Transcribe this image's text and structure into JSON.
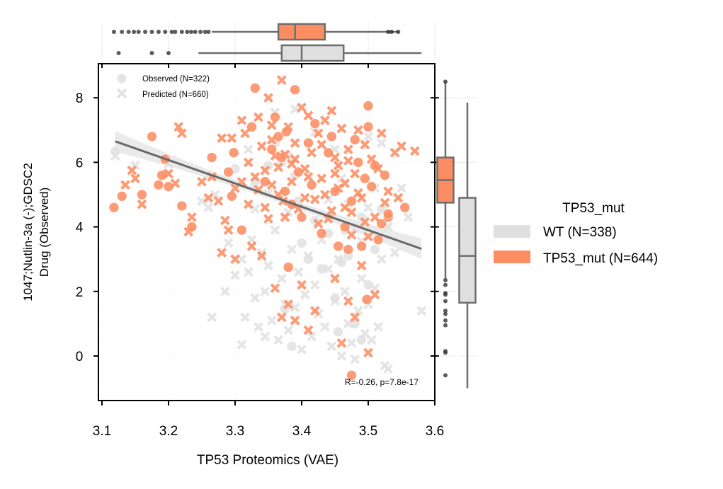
{
  "chart_data": {
    "type": "scatter",
    "xlabel": "TP53 Proteomics (VAE)",
    "ylabel_lines": [
      "1047;Nutlin-3a (-);GDSC2",
      "Drug (Observed)"
    ],
    "xlim": [
      3.1,
      3.6
    ],
    "ylim": [
      -1.5,
      9
    ],
    "x_ticks": [
      "3.1",
      "3.2",
      "3.3",
      "3.4",
      "3.5",
      "3.6"
    ],
    "y_ticks": [
      "0",
      "2",
      "4",
      "6",
      "8"
    ],
    "annotation": "R=-0.26, p=7.8e-17",
    "marker_legend": {
      "observed": "Observed (N=322)",
      "predicted": "Predicted (N=660)"
    },
    "legend": {
      "title": "TP53_mut",
      "wt_label": "WT (N=338)",
      "mut_label": "TP53_mut (N=644)"
    },
    "colors": {
      "wt": "#e0e0e0",
      "mut": "#fc8d62",
      "line": "#696969",
      "box_edge": "#6e6e6e"
    },
    "regression": {
      "x": [
        3.12,
        3.58
      ],
      "y": [
        6.65,
        3.32
      ],
      "band_halfwidth_ends": 0.32,
      "band_halfwidth_mid": 0.1
    },
    "x_box": {
      "mut": {
        "whisker": [
          3.265,
          3.545
        ],
        "q1": 3.365,
        "median": 3.39,
        "q3": 3.435,
        "outliers": [
          3.118,
          3.13,
          3.14,
          3.148,
          3.155,
          3.165,
          3.175,
          3.185,
          3.195,
          3.205,
          3.21,
          3.22,
          3.228,
          3.234,
          3.24,
          3.248,
          3.255,
          3.26,
          3.53,
          3.535,
          3.545
        ]
      },
      "wt": {
        "whisker": [
          3.245,
          3.58
        ],
        "q1": 3.37,
        "median": 3.4,
        "q3": 3.463,
        "outliers": [
          3.125,
          3.175,
          3.2
        ]
      }
    },
    "y_box": {
      "mut": {
        "whisker": [
          2.4,
          8.5
        ],
        "q1": 4.75,
        "median": 5.45,
        "q3": 6.15,
        "outliers": [
          8.5,
          2.35,
          2.2,
          1.95,
          1.9,
          1.7,
          1.4,
          1.3,
          1.1,
          0.95,
          0.15,
          0.1,
          -0.6
        ]
      },
      "wt": {
        "whisker": [
          -1.0,
          7.85
        ],
        "q1": 1.65,
        "median": 3.1,
        "q3": 4.9,
        "outliers": []
      }
    },
    "series": [
      {
        "group": "TP53_mut",
        "marker": "observed",
        "points": [
          [
            3.118,
            4.6
          ],
          [
            3.13,
            4.95
          ],
          [
            3.16,
            5.0
          ],
          [
            3.175,
            6.8
          ],
          [
            3.185,
            5.3
          ],
          [
            3.19,
            5.6
          ],
          [
            3.195,
            6.1
          ],
          [
            3.2,
            5.25
          ],
          [
            3.22,
            4.65
          ],
          [
            3.235,
            4.0
          ],
          [
            3.265,
            6.15
          ],
          [
            3.29,
            5.7
          ],
          [
            3.295,
            4.95
          ],
          [
            3.298,
            6.3
          ],
          [
            3.31,
            3.9
          ],
          [
            3.33,
            8.3
          ],
          [
            3.355,
            6.4
          ],
          [
            3.36,
            7.4
          ],
          [
            3.365,
            6.8
          ],
          [
            3.37,
            6.15
          ],
          [
            3.375,
            5.1
          ],
          [
            3.385,
            4.7
          ],
          [
            3.39,
            8.25
          ],
          [
            3.395,
            5.7
          ],
          [
            3.4,
            4.3
          ],
          [
            3.41,
            6.6
          ],
          [
            3.415,
            5.3
          ],
          [
            3.42,
            7.2
          ],
          [
            3.43,
            3.8
          ],
          [
            3.44,
            6.3
          ],
          [
            3.45,
            5.1
          ],
          [
            3.455,
            3.4
          ],
          [
            3.465,
            4.0
          ],
          [
            3.47,
            3.3
          ],
          [
            3.475,
            -0.6
          ],
          [
            3.48,
            6.7
          ],
          [
            3.49,
            3.4
          ],
          [
            3.495,
            5.5
          ],
          [
            3.5,
            7.1
          ],
          [
            3.505,
            5.25
          ],
          [
            3.51,
            5.9
          ],
          [
            3.515,
            3.6
          ],
          [
            3.52,
            4.1
          ],
          [
            3.525,
            5.6
          ],
          [
            3.53,
            4.3
          ],
          [
            3.555,
            4.6
          ],
          [
            3.5,
            7.75
          ],
          [
            3.498,
            1.75
          ],
          [
            3.377,
            6.95
          ],
          [
            3.345,
            5.4
          ],
          [
            3.325,
            7.1
          ],
          [
            3.38,
            2.75
          ],
          [
            3.475,
            4.8
          ],
          [
            3.485,
            6.0
          ],
          [
            3.53,
            4.4
          ],
          [
            3.445,
            6.8
          ]
        ]
      },
      {
        "group": "TP53_mut",
        "marker": "predicted",
        "points": [
          [
            3.135,
            5.3
          ],
          [
            3.145,
            5.75
          ],
          [
            3.15,
            5.5
          ],
          [
            3.16,
            4.7
          ],
          [
            3.2,
            5.65
          ],
          [
            3.21,
            5.35
          ],
          [
            3.215,
            7.1
          ],
          [
            3.22,
            6.9
          ],
          [
            3.23,
            3.85
          ],
          [
            3.235,
            4.3
          ],
          [
            3.25,
            5.4
          ],
          [
            3.26,
            4.9
          ],
          [
            3.265,
            5.55
          ],
          [
            3.275,
            4.8
          ],
          [
            3.28,
            6.75
          ],
          [
            3.285,
            4.2
          ],
          [
            3.29,
            3.9
          ],
          [
            3.295,
            6.75
          ],
          [
            3.3,
            5.2
          ],
          [
            3.31,
            7.3
          ],
          [
            3.315,
            6.9
          ],
          [
            3.32,
            6.0
          ],
          [
            3.325,
            3.4
          ],
          [
            3.33,
            5.55
          ],
          [
            3.335,
            7.4
          ],
          [
            3.34,
            6.5
          ],
          [
            3.345,
            5.75
          ],
          [
            3.35,
            8.0
          ],
          [
            3.355,
            7.15
          ],
          [
            3.36,
            6.2
          ],
          [
            3.365,
            5.85
          ],
          [
            3.37,
            8.55
          ],
          [
            3.372,
            4.8
          ],
          [
            3.375,
            6.25
          ],
          [
            3.38,
            7.1
          ],
          [
            3.385,
            5.95
          ],
          [
            3.39,
            6.6
          ],
          [
            3.395,
            4.55
          ],
          [
            3.4,
            7.7
          ],
          [
            3.405,
            5.8
          ],
          [
            3.41,
            7.45
          ],
          [
            3.415,
            6.3
          ],
          [
            3.42,
            4.85
          ],
          [
            3.425,
            6.9
          ],
          [
            3.43,
            5.5
          ],
          [
            3.435,
            7.3
          ],
          [
            3.44,
            4.25
          ],
          [
            3.445,
            7.6
          ],
          [
            3.45,
            6.15
          ],
          [
            3.455,
            5.2
          ],
          [
            3.46,
            7.05
          ],
          [
            3.465,
            4.6
          ],
          [
            3.47,
            6.4
          ],
          [
            3.475,
            3.75
          ],
          [
            3.48,
            5.65
          ],
          [
            3.485,
            7.0
          ],
          [
            3.49,
            4.9
          ],
          [
            3.495,
            6.55
          ],
          [
            3.5,
            3.7
          ],
          [
            3.505,
            6.1
          ],
          [
            3.51,
            4.3
          ],
          [
            3.515,
            5.8
          ],
          [
            3.52,
            6.9
          ],
          [
            3.525,
            4.75
          ],
          [
            3.53,
            5.1
          ],
          [
            3.54,
            6.3
          ],
          [
            3.545,
            4.9
          ],
          [
            3.55,
            6.5
          ],
          [
            3.57,
            6.35
          ],
          [
            3.3,
            3.0
          ],
          [
            3.28,
            3.2
          ],
          [
            3.34,
            3.1
          ],
          [
            3.36,
            2.1
          ],
          [
            3.38,
            1.6
          ],
          [
            3.39,
            1.1
          ],
          [
            3.4,
            2.2
          ],
          [
            3.41,
            0.8
          ],
          [
            3.42,
            1.4
          ],
          [
            3.45,
            2.4
          ],
          [
            3.47,
            1.7
          ],
          [
            3.48,
            1.2
          ],
          [
            3.49,
            2.8
          ],
          [
            3.5,
            0.1
          ],
          [
            3.51,
            1.9
          ],
          [
            3.46,
            0.4
          ],
          [
            3.37,
            1.2
          ],
          [
            3.355,
            5.3
          ],
          [
            3.365,
            5.0
          ],
          [
            3.375,
            4.3
          ],
          [
            3.385,
            5.4
          ],
          [
            3.405,
            4.9
          ],
          [
            3.425,
            4.1
          ],
          [
            3.435,
            5.0
          ],
          [
            3.445,
            4.5
          ],
          [
            3.455,
            5.9
          ],
          [
            3.465,
            5.35
          ],
          [
            3.475,
            4.45
          ],
          [
            3.485,
            5.05
          ],
          [
            3.495,
            4.15
          ],
          [
            3.345,
            4.6
          ],
          [
            3.335,
            5.15
          ],
          [
            3.355,
            6.7
          ],
          [
            3.39,
            6.1
          ],
          [
            3.41,
            5.55
          ],
          [
            3.43,
            6.55
          ],
          [
            3.45,
            5.65
          ],
          [
            3.47,
            6.05
          ],
          [
            3.35,
            4.25
          ],
          [
            3.32,
            4.7
          ],
          [
            3.31,
            5.4
          ]
        ]
      },
      {
        "group": "WT",
        "marker": "observed",
        "points": [
          [
            3.12,
            6.35
          ],
          [
            3.195,
            5.65
          ],
          [
            3.3,
            5.8
          ],
          [
            3.33,
            5.35
          ],
          [
            3.35,
            5.9
          ],
          [
            3.36,
            6.6
          ],
          [
            3.37,
            6.0
          ],
          [
            3.38,
            6.2
          ],
          [
            3.39,
            5.6
          ],
          [
            3.4,
            3.5
          ],
          [
            3.41,
            3.0
          ],
          [
            3.42,
            4.2
          ],
          [
            3.43,
            2.7
          ],
          [
            3.44,
            3.8
          ],
          [
            3.45,
            1.8
          ],
          [
            3.46,
            2.9
          ],
          [
            3.47,
            3.1
          ],
          [
            3.48,
            1.0
          ],
          [
            3.49,
            0.5
          ],
          [
            3.5,
            2.2
          ],
          [
            3.51,
            3.3
          ],
          [
            3.375,
            1.45
          ],
          [
            3.385,
            0.3
          ],
          [
            3.455,
            0.75
          ],
          [
            3.465,
            3.9
          ],
          [
            3.49,
            4.3
          ],
          [
            3.52,
            4.55
          ],
          [
            3.395,
            4.8
          ]
        ]
      },
      {
        "group": "WT",
        "marker": "predicted",
        "points": [
          [
            3.12,
            6.2
          ],
          [
            3.15,
            5.9
          ],
          [
            3.2,
            5.95
          ],
          [
            3.25,
            4.8
          ],
          [
            3.26,
            4.6
          ],
          [
            3.27,
            5.0
          ],
          [
            3.29,
            3.5
          ],
          [
            3.3,
            2.5
          ],
          [
            3.31,
            3.0
          ],
          [
            3.315,
            1.2
          ],
          [
            3.32,
            2.6
          ],
          [
            3.325,
            3.6
          ],
          [
            3.33,
            1.8
          ],
          [
            3.335,
            0.9
          ],
          [
            3.34,
            3.2
          ],
          [
            3.345,
            2.0
          ],
          [
            3.35,
            2.8
          ],
          [
            3.355,
            1.1
          ],
          [
            3.36,
            3.9
          ],
          [
            3.365,
            0.5
          ],
          [
            3.37,
            2.4
          ],
          [
            3.375,
            1.6
          ],
          [
            3.38,
            0.8
          ],
          [
            3.385,
            3.3
          ],
          [
            3.39,
            1.5
          ],
          [
            3.395,
            2.6
          ],
          [
            3.4,
            0.2
          ],
          [
            3.405,
            1.9
          ],
          [
            3.41,
            3.1
          ],
          [
            3.415,
            0.6
          ],
          [
            3.42,
            2.2
          ],
          [
            3.425,
            1.3
          ],
          [
            3.43,
            3.6
          ],
          [
            3.435,
            0.9
          ],
          [
            3.44,
            2.7
          ],
          [
            3.445,
            0.3
          ],
          [
            3.45,
            1.7
          ],
          [
            3.455,
            3.0
          ],
          [
            3.46,
            0.0
          ],
          [
            3.465,
            2.0
          ],
          [
            3.47,
            1.0
          ],
          [
            3.475,
            0.4
          ],
          [
            3.48,
            -0.1
          ],
          [
            3.485,
            1.4
          ],
          [
            3.49,
            2.4
          ],
          [
            3.495,
            0.7
          ],
          [
            3.5,
            1.6
          ],
          [
            3.505,
            0.5
          ],
          [
            3.51,
            2.1
          ],
          [
            3.515,
            0.9
          ],
          [
            3.52,
            3.0
          ],
          [
            3.525,
            -0.3
          ],
          [
            3.53,
            4.0
          ],
          [
            3.54,
            3.2
          ],
          [
            3.55,
            5.2
          ],
          [
            3.56,
            4.3
          ],
          [
            3.58,
            1.4
          ],
          [
            3.53,
            -0.4
          ],
          [
            3.265,
            1.2
          ],
          [
            3.285,
            2.0
          ],
          [
            3.31,
            0.35
          ],
          [
            3.345,
            0.6
          ],
          [
            3.38,
            4.45
          ],
          [
            3.36,
            7.55
          ],
          [
            3.39,
            7.65
          ],
          [
            3.42,
            6.95
          ],
          [
            3.45,
            6.4
          ],
          [
            3.5,
            6.8
          ],
          [
            3.32,
            6.4
          ],
          [
            3.35,
            5.05
          ],
          [
            3.33,
            4.55
          ],
          [
            3.44,
            4.85
          ],
          [
            3.46,
            5.5
          ],
          [
            3.47,
            4.7
          ],
          [
            3.48,
            3.95
          ],
          [
            3.49,
            3.55
          ],
          [
            3.5,
            4.6
          ],
          [
            3.51,
            5.2
          ],
          [
            3.52,
            6.6
          ]
        ]
      }
    ]
  }
}
